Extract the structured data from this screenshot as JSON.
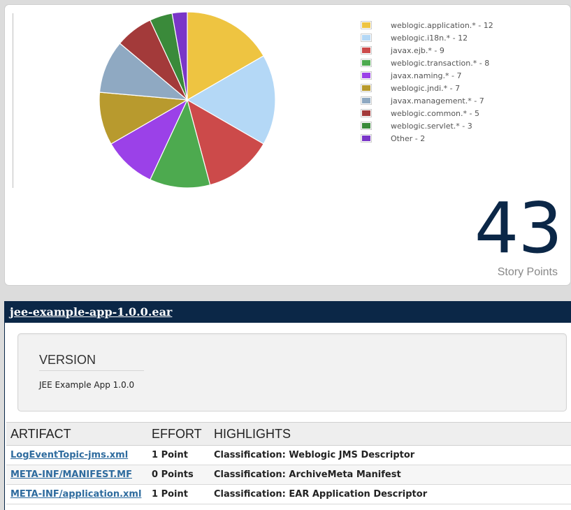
{
  "chart_data": {
    "type": "pie",
    "title": "",
    "legend_position": "right",
    "slices": [
      {
        "label": "weblogic.application.*",
        "value": 12,
        "color": "#eec441",
        "legend_text": "weblogic.application.* - 12"
      },
      {
        "label": "weblogic.i18n.*",
        "value": 12,
        "color": "#b4d8f6",
        "legend_text": "weblogic.i18n.* - 12"
      },
      {
        "label": "javax.ejb.*",
        "value": 9,
        "color": "#cc4a4a",
        "legend_text": "javax.ejb.* - 9"
      },
      {
        "label": "weblogic.transaction.*",
        "value": 8,
        "color": "#4daa4f",
        "legend_text": "weblogic.transaction.* - 8"
      },
      {
        "label": "javax.naming.*",
        "value": 7,
        "color": "#9b41e8",
        "legend_text": "javax.naming.* - 7"
      },
      {
        "label": "weblogic.jndi.*",
        "value": 7,
        "color": "#b89a2e",
        "legend_text": "weblogic.jndi.* - 7"
      },
      {
        "label": "javax.management.*",
        "value": 7,
        "color": "#8fa9c2",
        "legend_text": "javax.management.* - 7"
      },
      {
        "label": "weblogic.common.*",
        "value": 5,
        "color": "#a33a3a",
        "legend_text": "weblogic.common.* - 5"
      },
      {
        "label": "weblogic.servlet.*",
        "value": 3,
        "color": "#3a8a3a",
        "legend_text": "weblogic.servlet.* - 3"
      },
      {
        "label": "Other",
        "value": 2,
        "color": "#7a36c8",
        "legend_text": "Other - 2"
      }
    ]
  },
  "story_points": {
    "value": "43",
    "label": "Story Points"
  },
  "application": {
    "title": "jee-example-app-1.0.0.ear",
    "version_heading": "VERSION",
    "version_value": "JEE Example App 1.0.0"
  },
  "table": {
    "headers": [
      "ARTIFACT",
      "EFFORT",
      "HIGHLIGHTS"
    ],
    "rows": [
      {
        "artifact": "LogEventTopic-jms.xml",
        "effort": "1 Point",
        "highlights": "Classification: Weblogic JMS Descriptor"
      },
      {
        "artifact": "META-INF/MANIFEST.MF",
        "effort": "0 Points",
        "highlights": "Classification: ArchiveMeta Manifest"
      },
      {
        "artifact": "META-INF/application.xml",
        "effort": "1 Point",
        "highlights": "Classification: EAR Application Descriptor"
      }
    ]
  },
  "colors": {
    "header_bg": "#0b2747",
    "points_color": "#0b2747",
    "link_color": "#2e6b9e"
  }
}
